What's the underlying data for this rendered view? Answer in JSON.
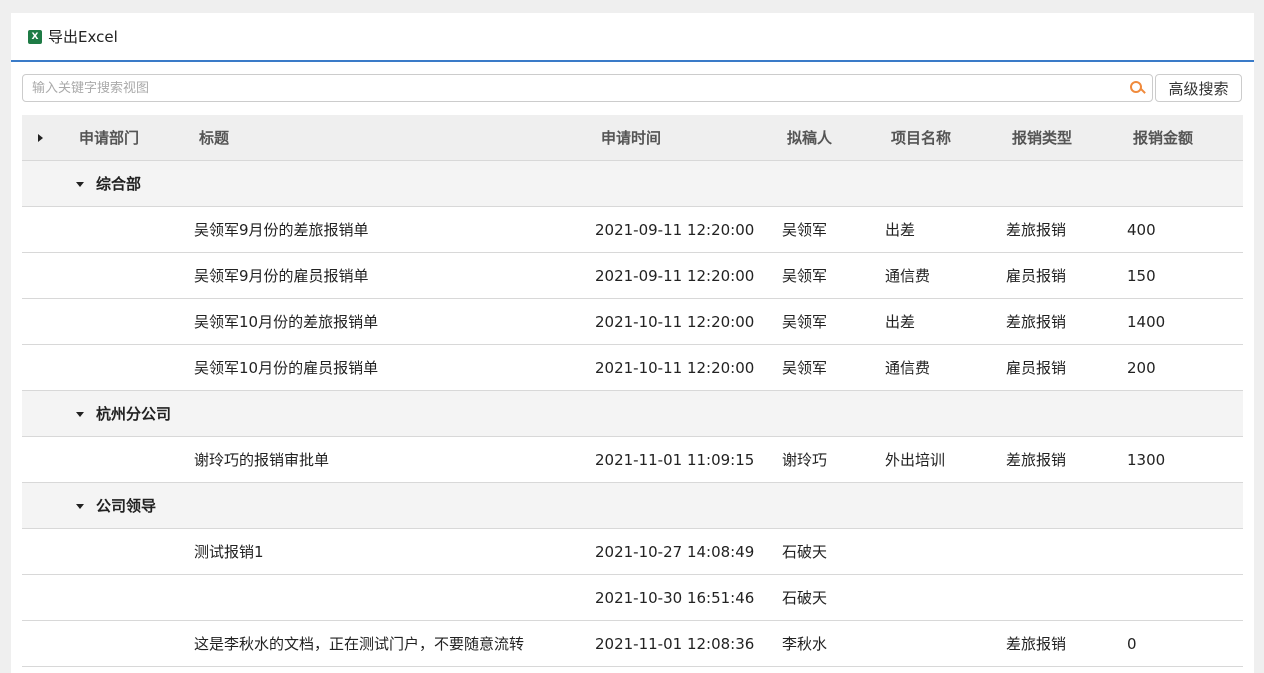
{
  "toolbar": {
    "export_label": "导出Excel",
    "excel_icon": "excel-icon"
  },
  "search": {
    "placeholder": "输入关键字搜索视图",
    "value": "",
    "advanced_label": "高级搜索"
  },
  "colors": {
    "accent": "#3a7bc8",
    "search_icon": "#f08a3c"
  },
  "table": {
    "headers": [
      "申请部门",
      "标题",
      "申请时间",
      "拟稿人",
      "项目名称",
      "报销类型",
      "报销金额"
    ],
    "groups": [
      {
        "name": "综合部",
        "rows": [
          [
            "吴领军9月份的差旅报销单",
            "2021-09-11 12:20:00",
            "吴领军",
            "出差",
            "差旅报销",
            "400"
          ],
          [
            "吴领军9月份的雇员报销单",
            "2021-09-11 12:20:00",
            "吴领军",
            "通信费",
            "雇员报销",
            "150"
          ],
          [
            "吴领军10月份的差旅报销单",
            "2021-10-11 12:20:00",
            "吴领军",
            "出差",
            "差旅报销",
            "1400"
          ],
          [
            "吴领军10月份的雇员报销单",
            "2021-10-11 12:20:00",
            "吴领军",
            "通信费",
            "雇员报销",
            "200"
          ]
        ]
      },
      {
        "name": "杭州分公司",
        "rows": [
          [
            "谢玲巧的报销审批单",
            "2021-11-01 11:09:15",
            "谢玲巧",
            "外出培训",
            "差旅报销",
            "1300"
          ]
        ]
      },
      {
        "name": "公司领导",
        "rows": [
          [
            "测试报销1",
            "2021-10-27 14:08:49",
            "石破天",
            "",
            "",
            ""
          ],
          [
            "",
            "2021-10-30 16:51:46",
            "石破天",
            "",
            "",
            ""
          ],
          [
            "这是李秋水的文档，正在测试门户，不要随意流转",
            "2021-11-01 12:08:36",
            "李秋水",
            "",
            "差旅报销",
            "0"
          ]
        ]
      }
    ]
  }
}
